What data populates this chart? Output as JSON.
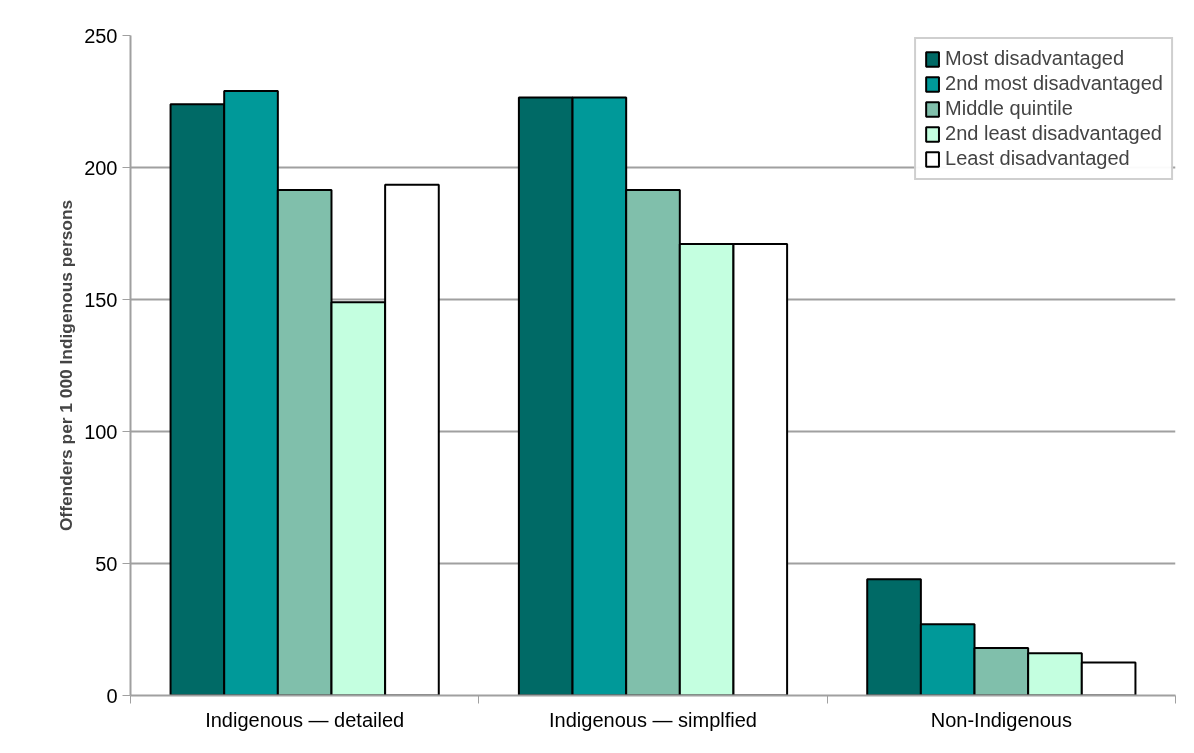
{
  "chart_data": {
    "type": "bar",
    "ylabel": "Offenders per 1 000 Indigenous persons",
    "categories": [
      "Indigenous — detailed",
      "Indigenous — simplfied",
      "Non-Indigenous"
    ],
    "series": [
      {
        "name": "Most disadvantaged",
        "color": "#006a66",
        "values": [
          224,
          226.5,
          44
        ]
      },
      {
        "name": "2nd most disadvantaged",
        "color": "#009999",
        "values": [
          229,
          226.5,
          27
        ]
      },
      {
        "name": "Middle quintile",
        "color": "#80bfab",
        "values": [
          191.5,
          191.5,
          18
        ]
      },
      {
        "name": "2nd least disadvantaged",
        "color": "#c4ffe0",
        "values": [
          149,
          171,
          16
        ]
      },
      {
        "name": "Least disadvantaged",
        "color": "#ffffff",
        "values": [
          193.5,
          171,
          12.5
        ]
      }
    ],
    "ylim": [
      0,
      250
    ],
    "yticks": [
      0,
      50,
      100,
      150,
      200,
      250
    ],
    "grid": "y",
    "legend": "top right"
  }
}
